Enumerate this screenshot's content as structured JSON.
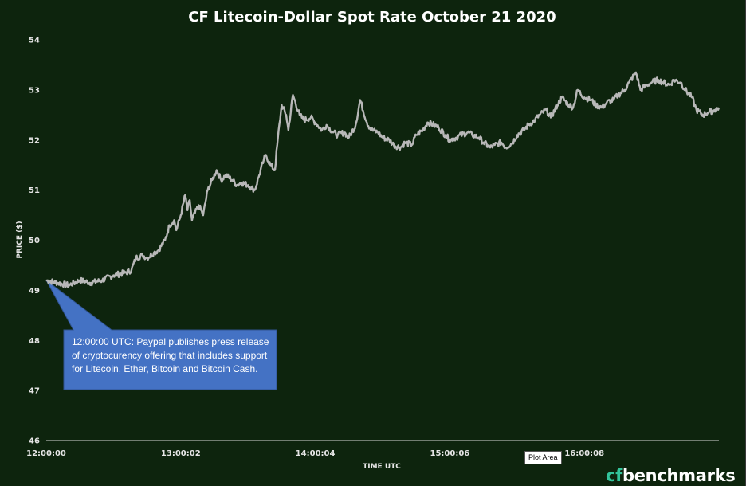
{
  "chart_data": {
    "type": "line",
    "title": "CF Litecoin-Dollar Spot Rate October 21 2020",
    "xlabel": "TIME UTC",
    "ylabel": "PRICE ($)",
    "ylim": [
      46,
      54
    ],
    "yticks": [
      "54",
      "53",
      "52",
      "51",
      "50",
      "49",
      "48",
      "47",
      "46"
    ],
    "xticks": [
      "12:00:00",
      "13:00:02",
      "14:00:04",
      "15:00:06",
      "16:00:08"
    ],
    "xlim_minutes": [
      0,
      300
    ],
    "grid": false,
    "legend": "none",
    "line_color": "#b8b8b8",
    "series": [
      {
        "x_minutes": [
          0,
          5,
          10,
          15,
          20,
          25,
          30,
          35,
          38,
          40,
          43,
          45,
          48,
          50,
          53,
          55,
          57,
          58,
          60,
          62,
          63,
          64,
          65,
          68,
          70,
          72,
          74,
          76,
          78,
          80,
          83,
          85,
          87,
          90,
          93,
          95,
          97,
          98,
          100,
          102,
          103,
          105,
          107,
          108,
          110,
          113,
          115,
          118,
          120,
          123,
          125,
          128,
          130,
          133,
          135,
          138,
          140,
          143,
          145,
          148,
          150,
          153,
          155,
          158,
          160,
          163,
          165,
          168,
          170,
          173,
          175,
          178,
          180,
          183,
          185,
          188,
          190,
          193,
          195,
          198,
          200,
          203,
          205,
          208,
          210,
          213,
          215,
          218,
          220,
          223,
          225,
          228,
          230,
          233,
          235,
          237,
          240,
          243,
          245,
          248,
          250,
          253,
          255,
          258,
          260,
          263,
          265,
          268,
          270,
          273,
          275,
          278,
          280,
          283,
          285,
          288,
          290,
          293,
          295,
          298,
          300
        ],
        "values": [
          49.2,
          49.15,
          49.1,
          49.2,
          49.15,
          49.2,
          49.3,
          49.35,
          49.4,
          49.65,
          49.7,
          49.65,
          49.75,
          49.8,
          50.0,
          50.3,
          50.4,
          50.2,
          50.5,
          50.9,
          50.6,
          50.8,
          50.4,
          50.7,
          50.5,
          51.0,
          51.2,
          51.4,
          51.2,
          51.3,
          51.2,
          51.1,
          51.15,
          51.1,
          51.0,
          51.3,
          51.6,
          51.7,
          51.5,
          51.4,
          51.9,
          52.7,
          52.5,
          52.2,
          52.9,
          52.5,
          52.4,
          52.45,
          52.35,
          52.2,
          52.3,
          52.15,
          52.1,
          52.15,
          52.05,
          52.3,
          52.8,
          52.35,
          52.2,
          52.15,
          52.05,
          52.0,
          51.9,
          51.85,
          51.95,
          51.9,
          52.1,
          52.2,
          52.35,
          52.3,
          52.25,
          52.1,
          52.0,
          52.05,
          52.1,
          52.15,
          52.1,
          52.05,
          51.95,
          51.85,
          51.9,
          51.95,
          51.85,
          51.95,
          52.1,
          52.2,
          52.3,
          52.4,
          52.5,
          52.6,
          52.45,
          52.7,
          52.85,
          52.7,
          52.65,
          53.0,
          52.85,
          52.8,
          52.7,
          52.65,
          52.75,
          52.8,
          52.9,
          53.0,
          53.15,
          53.35,
          53.0,
          53.1,
          53.15,
          53.2,
          53.15,
          53.1,
          53.2,
          53.15,
          53.0,
          52.85,
          52.6,
          52.5,
          52.55,
          52.6,
          52.65
        ]
      }
    ]
  },
  "annotation": {
    "text": "12:00:00 UTC: Paypal publishes press release of cryptocurency offering that includes support for Litecoin, Ether, Bitcoin and Bitcoin Cash.",
    "box_color": "#4472c4",
    "anchor_x_minutes": 0,
    "anchor_value": 49.2
  },
  "plot_area_tag": "Plot Area",
  "brand": {
    "cf": "cf",
    "rest": "benchmarks",
    "cf_color": "#33c49b"
  }
}
